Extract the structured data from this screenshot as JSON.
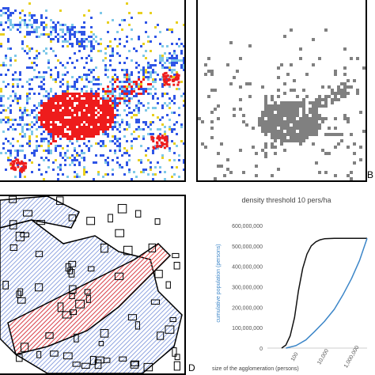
{
  "panels": {
    "b_label": "B",
    "d_label": "D"
  },
  "colors": {
    "panel_a": {
      "blue": "#2f55e6",
      "red": "#ee1c1c",
      "cyan": "#7ec8e8",
      "yellow": "#e8d020",
      "background": "#ffffff"
    },
    "panel_b": {
      "gray": "#808080",
      "background": "#ffffff"
    },
    "panel_c": {
      "outline": "#000000",
      "hatch_red": "#e84a4a",
      "hatch_blue": "#6a86d6"
    },
    "chart": {
      "black_curve": "#111111",
      "blue_curve": "#3c86c8",
      "axis_label": "#3c86c8"
    }
  },
  "chart_data": {
    "type": "line",
    "title": "density threshold 10 pers/ha",
    "xlabel": "size of the agglomeration (persons)",
    "ylabel": "cumulative population (persons)",
    "x_scale": "log",
    "x_ticks": [
      "100",
      "10,000",
      "1,000,000"
    ],
    "y_ticks": [
      "0",
      "100,000,000",
      "200,000,000",
      "300,000,000",
      "400,000,000",
      "500,000,000",
      "600,000,000"
    ],
    "ylim": [
      0,
      600000000
    ],
    "xlim": [
      1,
      10000000
    ],
    "grid": false,
    "series": [
      {
        "color": "#111111",
        "x": [
          10,
          20,
          40,
          80,
          150,
          300,
          600,
          1200,
          2500,
          5000,
          10000,
          50000,
          1000000,
          10000000
        ],
        "y": [
          0,
          15000000,
          60000000,
          150000000,
          280000000,
          390000000,
          460000000,
          500000000,
          520000000,
          530000000,
          535000000,
          537000000,
          537000000,
          537000000
        ]
      },
      {
        "color": "#3c86c8",
        "x": [
          20,
          100,
          500,
          2000,
          10000,
          50000,
          200000,
          800000,
          3000000,
          10000000
        ],
        "y": [
          0,
          12000000,
          40000000,
          80000000,
          130000000,
          190000000,
          260000000,
          340000000,
          430000000,
          537000000
        ]
      }
    ]
  }
}
